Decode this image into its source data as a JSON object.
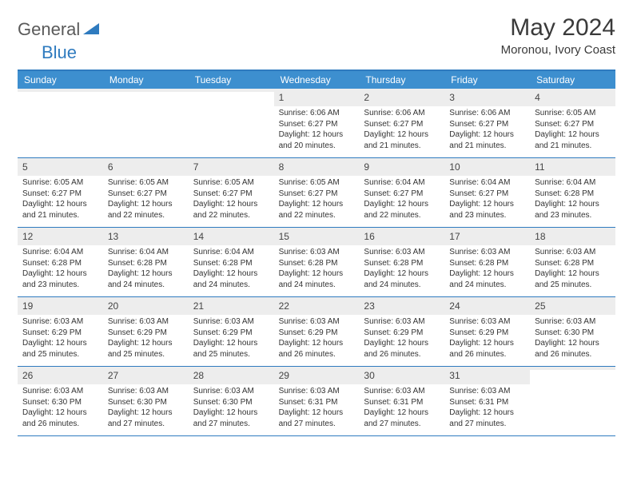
{
  "brand": {
    "part1": "General",
    "part2": "Blue"
  },
  "title": "May 2024",
  "location": "Moronou, Ivory Coast",
  "colors": {
    "header_bg": "#3d8fcf",
    "border": "#2f7bbf",
    "daynum_bg": "#ededed",
    "brand_gray": "#5a5a5a",
    "brand_blue": "#2f7bbf"
  },
  "dayHeaders": [
    "Sunday",
    "Monday",
    "Tuesday",
    "Wednesday",
    "Thursday",
    "Friday",
    "Saturday"
  ],
  "weeks": [
    [
      {
        "empty": true
      },
      {
        "empty": true
      },
      {
        "empty": true
      },
      {
        "day": "1",
        "sunrise": "Sunrise: 6:06 AM",
        "sunset": "Sunset: 6:27 PM",
        "daylight": "Daylight: 12 hours and 20 minutes."
      },
      {
        "day": "2",
        "sunrise": "Sunrise: 6:06 AM",
        "sunset": "Sunset: 6:27 PM",
        "daylight": "Daylight: 12 hours and 21 minutes."
      },
      {
        "day": "3",
        "sunrise": "Sunrise: 6:06 AM",
        "sunset": "Sunset: 6:27 PM",
        "daylight": "Daylight: 12 hours and 21 minutes."
      },
      {
        "day": "4",
        "sunrise": "Sunrise: 6:05 AM",
        "sunset": "Sunset: 6:27 PM",
        "daylight": "Daylight: 12 hours and 21 minutes."
      }
    ],
    [
      {
        "day": "5",
        "sunrise": "Sunrise: 6:05 AM",
        "sunset": "Sunset: 6:27 PM",
        "daylight": "Daylight: 12 hours and 21 minutes."
      },
      {
        "day": "6",
        "sunrise": "Sunrise: 6:05 AM",
        "sunset": "Sunset: 6:27 PM",
        "daylight": "Daylight: 12 hours and 22 minutes."
      },
      {
        "day": "7",
        "sunrise": "Sunrise: 6:05 AM",
        "sunset": "Sunset: 6:27 PM",
        "daylight": "Daylight: 12 hours and 22 minutes."
      },
      {
        "day": "8",
        "sunrise": "Sunrise: 6:05 AM",
        "sunset": "Sunset: 6:27 PM",
        "daylight": "Daylight: 12 hours and 22 minutes."
      },
      {
        "day": "9",
        "sunrise": "Sunrise: 6:04 AM",
        "sunset": "Sunset: 6:27 PM",
        "daylight": "Daylight: 12 hours and 22 minutes."
      },
      {
        "day": "10",
        "sunrise": "Sunrise: 6:04 AM",
        "sunset": "Sunset: 6:27 PM",
        "daylight": "Daylight: 12 hours and 23 minutes."
      },
      {
        "day": "11",
        "sunrise": "Sunrise: 6:04 AM",
        "sunset": "Sunset: 6:28 PM",
        "daylight": "Daylight: 12 hours and 23 minutes."
      }
    ],
    [
      {
        "day": "12",
        "sunrise": "Sunrise: 6:04 AM",
        "sunset": "Sunset: 6:28 PM",
        "daylight": "Daylight: 12 hours and 23 minutes."
      },
      {
        "day": "13",
        "sunrise": "Sunrise: 6:04 AM",
        "sunset": "Sunset: 6:28 PM",
        "daylight": "Daylight: 12 hours and 24 minutes."
      },
      {
        "day": "14",
        "sunrise": "Sunrise: 6:04 AM",
        "sunset": "Sunset: 6:28 PM",
        "daylight": "Daylight: 12 hours and 24 minutes."
      },
      {
        "day": "15",
        "sunrise": "Sunrise: 6:03 AM",
        "sunset": "Sunset: 6:28 PM",
        "daylight": "Daylight: 12 hours and 24 minutes."
      },
      {
        "day": "16",
        "sunrise": "Sunrise: 6:03 AM",
        "sunset": "Sunset: 6:28 PM",
        "daylight": "Daylight: 12 hours and 24 minutes."
      },
      {
        "day": "17",
        "sunrise": "Sunrise: 6:03 AM",
        "sunset": "Sunset: 6:28 PM",
        "daylight": "Daylight: 12 hours and 24 minutes."
      },
      {
        "day": "18",
        "sunrise": "Sunrise: 6:03 AM",
        "sunset": "Sunset: 6:28 PM",
        "daylight": "Daylight: 12 hours and 25 minutes."
      }
    ],
    [
      {
        "day": "19",
        "sunrise": "Sunrise: 6:03 AM",
        "sunset": "Sunset: 6:29 PM",
        "daylight": "Daylight: 12 hours and 25 minutes."
      },
      {
        "day": "20",
        "sunrise": "Sunrise: 6:03 AM",
        "sunset": "Sunset: 6:29 PM",
        "daylight": "Daylight: 12 hours and 25 minutes."
      },
      {
        "day": "21",
        "sunrise": "Sunrise: 6:03 AM",
        "sunset": "Sunset: 6:29 PM",
        "daylight": "Daylight: 12 hours and 25 minutes."
      },
      {
        "day": "22",
        "sunrise": "Sunrise: 6:03 AM",
        "sunset": "Sunset: 6:29 PM",
        "daylight": "Daylight: 12 hours and 26 minutes."
      },
      {
        "day": "23",
        "sunrise": "Sunrise: 6:03 AM",
        "sunset": "Sunset: 6:29 PM",
        "daylight": "Daylight: 12 hours and 26 minutes."
      },
      {
        "day": "24",
        "sunrise": "Sunrise: 6:03 AM",
        "sunset": "Sunset: 6:29 PM",
        "daylight": "Daylight: 12 hours and 26 minutes."
      },
      {
        "day": "25",
        "sunrise": "Sunrise: 6:03 AM",
        "sunset": "Sunset: 6:30 PM",
        "daylight": "Daylight: 12 hours and 26 minutes."
      }
    ],
    [
      {
        "day": "26",
        "sunrise": "Sunrise: 6:03 AM",
        "sunset": "Sunset: 6:30 PM",
        "daylight": "Daylight: 12 hours and 26 minutes."
      },
      {
        "day": "27",
        "sunrise": "Sunrise: 6:03 AM",
        "sunset": "Sunset: 6:30 PM",
        "daylight": "Daylight: 12 hours and 27 minutes."
      },
      {
        "day": "28",
        "sunrise": "Sunrise: 6:03 AM",
        "sunset": "Sunset: 6:30 PM",
        "daylight": "Daylight: 12 hours and 27 minutes."
      },
      {
        "day": "29",
        "sunrise": "Sunrise: 6:03 AM",
        "sunset": "Sunset: 6:31 PM",
        "daylight": "Daylight: 12 hours and 27 minutes."
      },
      {
        "day": "30",
        "sunrise": "Sunrise: 6:03 AM",
        "sunset": "Sunset: 6:31 PM",
        "daylight": "Daylight: 12 hours and 27 minutes."
      },
      {
        "day": "31",
        "sunrise": "Sunrise: 6:03 AM",
        "sunset": "Sunset: 6:31 PM",
        "daylight": "Daylight: 12 hours and 27 minutes."
      },
      {
        "empty": true
      }
    ]
  ]
}
